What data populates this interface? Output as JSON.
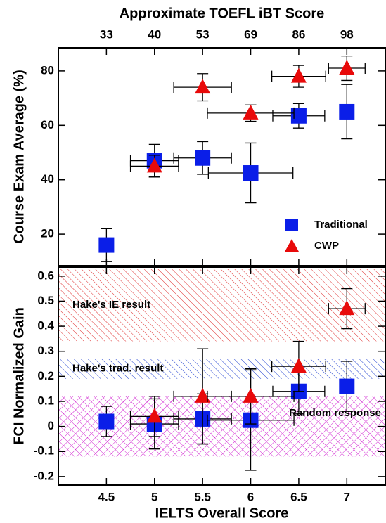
{
  "chart_data": [
    {
      "type": "scatter",
      "top_axis": {
        "label": "Approximate TOEFL iBT Score",
        "ticks": [
          {
            "value": 4.5,
            "label": "33"
          },
          {
            "value": 5,
            "label": "40"
          },
          {
            "value": 5.5,
            "label": "53"
          },
          {
            "value": 6,
            "label": "69"
          },
          {
            "value": 6.5,
            "label": "86"
          },
          {
            "value": 7,
            "label": "98"
          }
        ]
      },
      "ylabel": "Course Exam Average (%)",
      "xlim": [
        4,
        7.4
      ],
      "ylim": [
        8.4,
        88.5
      ],
      "yticks": [
        20,
        40,
        60,
        80
      ],
      "legend": "lower right",
      "series": [
        {
          "name": "Traditional",
          "color": "#0a1ee8",
          "marker": "square",
          "x": [
            4.5,
            5,
            5.5,
            6,
            6.5,
            7
          ],
          "values": [
            16,
            47,
            48,
            42.5,
            63.5,
            65
          ],
          "y_err": [
            6,
            6,
            6,
            11,
            4.5,
            10
          ],
          "x_err": [
            0,
            0.25,
            0.3,
            0.44,
            0.27,
            0
          ]
        },
        {
          "name": "CWP",
          "color": "#e80a0a",
          "marker": "triangle",
          "x": [
            5,
            5.5,
            6,
            6.5,
            7
          ],
          "values": [
            45,
            74,
            64.5,
            78,
            81
          ],
          "y_err": [
            4,
            5,
            3,
            4,
            4.5
          ],
          "x_err": [
            0.25,
            0.3,
            0.45,
            0.28,
            0.19
          ]
        }
      ]
    },
    {
      "type": "scatter",
      "xlabel": "IELTS Overall Score",
      "ylabel": "FCI Normalized Gain",
      "xlim": [
        4,
        7.4
      ],
      "ylim": [
        -0.234,
        0.636
      ],
      "xticks": [
        4.5,
        5,
        5.5,
        6,
        6.5,
        7
      ],
      "yticks": [
        0.6,
        0.5,
        0.4,
        0.3,
        0.2,
        0.1,
        0,
        -0.1,
        -0.2
      ],
      "bands": [
        {
          "label": "Hake's IE result",
          "range": [
            0.34,
            0.63
          ],
          "color": "#e03030",
          "hatch": "diagonal",
          "align": "left"
        },
        {
          "label": "Hake's trad. result",
          "range": [
            0.19,
            0.27
          ],
          "color": "#2040d0",
          "hatch": "diagonal",
          "align": "left"
        },
        {
          "label": "Random response",
          "range": [
            -0.12,
            0.12
          ],
          "color": "#d020d0",
          "hatch": "cross",
          "align": "right"
        }
      ],
      "series": [
        {
          "color": "#0a1ee8",
          "marker": "square",
          "x": [
            4.5,
            5,
            5.5,
            6,
            6.5,
            7
          ],
          "values": [
            0.02,
            0.01,
            0.03,
            0.025,
            0.14,
            0.16
          ],
          "y_err": [
            0.06,
            0.1,
            0.1,
            0.2,
            0.09,
            0.1
          ],
          "x_err": [
            0,
            0.25,
            0.3,
            0.45,
            0.27,
            0
          ]
        },
        {
          "color": "#e80a0a",
          "marker": "triangle",
          "x": [
            5,
            5.5,
            6,
            6.5,
            7
          ],
          "values": [
            0.04,
            0.12,
            0.12,
            0.24,
            0.47
          ],
          "y_err": [
            0.08,
            0.19,
            0.11,
            0.1,
            0.08
          ],
          "x_err": [
            0.25,
            0.3,
            0.45,
            0.28,
            0.19
          ]
        }
      ]
    }
  ]
}
